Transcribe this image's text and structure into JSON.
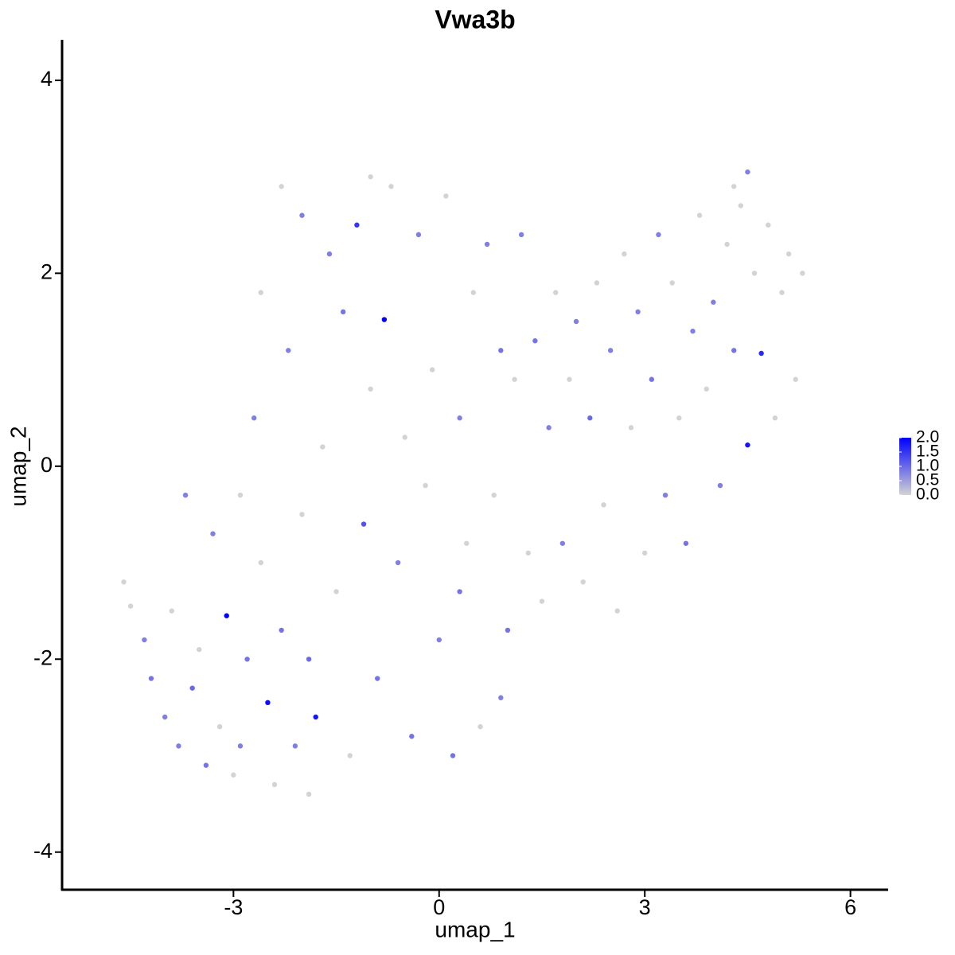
{
  "chart_data": {
    "type": "scatter",
    "title": "Vwa3b",
    "x_label": "umap_1",
    "y_label": "umap_2",
    "x": [
      -4.6,
      -4.5,
      -4.3,
      -4.2,
      -4.0,
      -3.9,
      -3.8,
      -3.6,
      -3.5,
      -3.4,
      -3.3,
      -3.2,
      -3.1,
      -3.0,
      -2.9,
      -2.8,
      -2.7,
      -2.6,
      -2.5,
      -2.4,
      -2.3,
      -2.2,
      -2.1,
      -2.0,
      -1.9,
      -1.8,
      -1.7,
      -1.6,
      -1.5,
      -1.4,
      -1.3,
      -1.2,
      -1.1,
      -1.0,
      -0.9,
      -0.8,
      -0.7,
      -0.6,
      -0.5,
      -0.4,
      -0.3,
      -0.2,
      -0.1,
      0.0,
      0.1,
      0.2,
      0.3,
      0.4,
      0.5,
      0.6,
      0.7,
      0.8,
      0.9,
      1.0,
      1.1,
      1.2,
      1.3,
      1.4,
      1.5,
      1.6,
      1.7,
      1.8,
      1.9,
      2.0,
      2.1,
      2.2,
      2.3,
      2.4,
      2.5,
      2.6,
      2.7,
      2.8,
      2.9,
      3.0,
      3.1,
      3.2,
      3.3,
      3.4,
      3.5,
      3.6,
      3.7,
      3.8,
      3.9,
      4.0,
      4.1,
      4.2,
      4.3,
      4.4,
      4.5,
      4.6,
      4.7,
      4.8,
      4.9,
      5.0,
      5.1,
      5.2,
      5.3,
      -2.0,
      -1.0,
      -2.6,
      0.3,
      -3.7,
      -2.9,
      -1.9,
      0.9,
      -2.3,
      4.5,
      4.3
    ],
    "y": [
      -1.2,
      -1.45,
      -1.8,
      -2.2,
      -2.6,
      -1.5,
      -2.9,
      -2.3,
      -1.9,
      -3.1,
      -0.7,
      -2.7,
      -1.55,
      -3.2,
      -0.3,
      -2.0,
      0.5,
      -1.0,
      -2.45,
      -3.3,
      -1.7,
      1.2,
      -2.9,
      -0.5,
      -2.0,
      -2.6,
      0.2,
      2.2,
      -1.3,
      1.6,
      -3.0,
      2.5,
      -0.6,
      0.8,
      -2.2,
      1.52,
      2.9,
      -1.0,
      0.3,
      -2.8,
      2.4,
      -0.2,
      1.0,
      -1.8,
      2.8,
      -3.0,
      0.5,
      -0.8,
      1.8,
      -2.7,
      2.3,
      -0.3,
      1.2,
      -1.7,
      0.9,
      2.4,
      -0.9,
      1.3,
      -1.4,
      0.4,
      1.8,
      -0.8,
      0.9,
      1.5,
      -1.2,
      0.5,
      1.9,
      -0.4,
      1.2,
      -1.5,
      2.2,
      0.4,
      1.6,
      -0.9,
      0.9,
      2.4,
      -0.3,
      1.9,
      0.5,
      -0.8,
      1.4,
      2.6,
      0.8,
      1.7,
      -0.2,
      2.3,
      1.2,
      2.7,
      0.22,
      2.0,
      1.17,
      2.5,
      0.5,
      1.8,
      2.2,
      0.9,
      2.0,
      2.6,
      3.0,
      1.8,
      -1.3,
      -0.3,
      -2.9,
      -3.4,
      -2.4,
      2.9,
      3.05,
      2.9
    ],
    "values": [
      0,
      0,
      0.8,
      0.9,
      0.8,
      0,
      0.8,
      1.0,
      0,
      0.9,
      0.8,
      0,
      2.0,
      0,
      0,
      0.9,
      0.8,
      0,
      1.9,
      0,
      0.9,
      0.8,
      0.8,
      0,
      1.0,
      1.8,
      0,
      0.8,
      0,
      0.9,
      0,
      1.5,
      1.2,
      0,
      0.9,
      2.0,
      0,
      0.8,
      0,
      0.9,
      0.8,
      0,
      0,
      0.8,
      0,
      0.9,
      0.8,
      0,
      0,
      0,
      0.8,
      0,
      0.9,
      0.9,
      0,
      0.8,
      0,
      0.9,
      0,
      0.8,
      0,
      0.8,
      0,
      0.8,
      0,
      1.0,
      0,
      0,
      0.8,
      0,
      0,
      0,
      0.8,
      0,
      0.9,
      0.8,
      0.8,
      0,
      0,
      0.9,
      0.8,
      0,
      0,
      0.8,
      0.8,
      0,
      0.9,
      0,
      1.8,
      0,
      1.6,
      0,
      0,
      0,
      0,
      0,
      0,
      0.8,
      0,
      0,
      0.9,
      0.8,
      0.8,
      0,
      0.8,
      0,
      0.8,
      0
    ],
    "low_color": "#d3d3d3",
    "high_color": "#0000ff",
    "xlim": [
      -5.5,
      6.55
    ],
    "ylim": [
      -4.39,
      4.42
    ],
    "xticks": [
      -3,
      0,
      3,
      6
    ],
    "yticks": [
      -4,
      -2,
      0,
      2,
      4
    ],
    "colorbar_lim": [
      0,
      2
    ],
    "colorbar_ticks": [
      {
        "value": 0,
        "label": "0.0"
      },
      {
        "value": 0.5,
        "label": "0.5"
      },
      {
        "value": 1,
        "label": "1.0"
      },
      {
        "value": 1.5,
        "label": "1.5"
      },
      {
        "value": 2,
        "label": "2.0"
      }
    ]
  }
}
